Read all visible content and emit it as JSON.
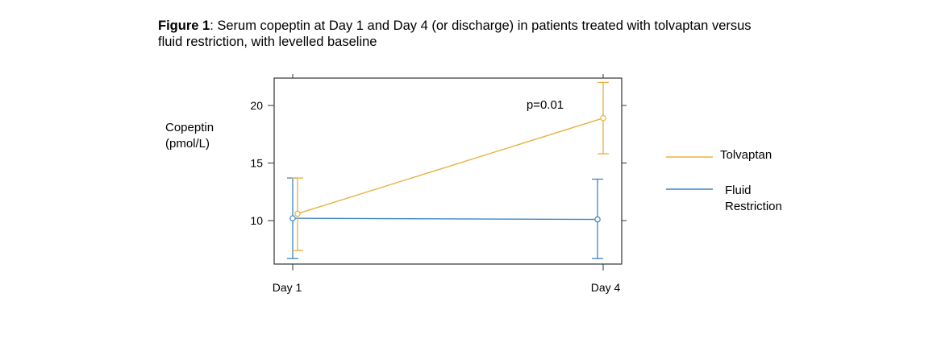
{
  "figure": {
    "caption_label": "Figure 1",
    "caption_text": ": Serum copeptin at Day 1 and Day 4 (or discharge) in patients treated with tolvaptan versus fluid restriction, with levelled baseline"
  },
  "chart_data": {
    "type": "line",
    "title": "",
    "ylabel_line1": "Copeptin",
    "ylabel_line2": "(pmol/L)",
    "xlabel": "",
    "categories": [
      "Day 1",
      "Day 4"
    ],
    "ylim": [
      6,
      22.5
    ],
    "yticks": [
      10,
      15,
      20
    ],
    "legend_placement": "right",
    "annotation": "p=0.01",
    "series": [
      {
        "name": "Tolvaptan",
        "color": "#E8B140",
        "values": [
          10.6,
          18.9
        ],
        "err_low": [
          7.4,
          15.8
        ],
        "err_high": [
          13.7,
          22.0
        ]
      },
      {
        "name": "Fluid Restriction",
        "name_line1": "Fluid",
        "name_line2": "Restriction",
        "color": "#3D85C6",
        "values": [
          10.2,
          10.1
        ],
        "err_low": [
          6.7,
          6.7
        ],
        "err_high": [
          13.7,
          13.6
        ]
      }
    ]
  }
}
